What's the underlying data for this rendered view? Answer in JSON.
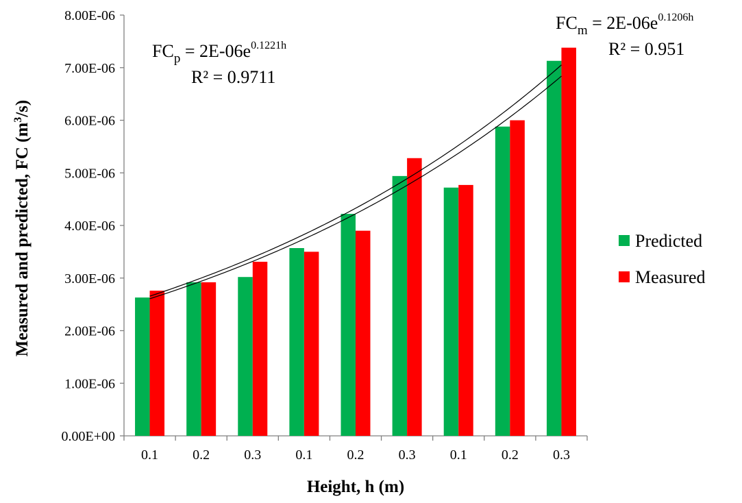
{
  "chart_data": {
    "type": "bar",
    "title": "",
    "xlabel": "Height, h (m)",
    "ylabel_main": "Measured and predicted, FC (m",
    "ylabel_sup": "3",
    "ylabel_end": "/s)",
    "categories": [
      "0.1",
      "0.2",
      "0.3",
      "0.1",
      "0.2",
      "0.3",
      "0.1",
      "0.2",
      "0.3"
    ],
    "series": [
      {
        "name": "Predicted",
        "color": "#00b050",
        "values": [
          2.63e-06,
          2.92e-06,
          3.02e-06,
          3.57e-06,
          4.22e-06,
          4.94e-06,
          4.72e-06,
          5.88e-06,
          7.13e-06
        ]
      },
      {
        "name": "Measured",
        "color": "#ff0000",
        "values": [
          2.76e-06,
          2.92e-06,
          3.31e-06,
          3.5e-06,
          3.9e-06,
          5.28e-06,
          4.77e-06,
          6e-06,
          7.38e-06
        ]
      }
    ],
    "ylim": [
      0,
      8e-06
    ],
    "yticks": [
      {
        "value": 0,
        "label": "0.00E+00"
      },
      {
        "value": 1e-06,
        "label": "1.00E-06"
      },
      {
        "value": 2e-06,
        "label": "2.00E-06"
      },
      {
        "value": 3e-06,
        "label": "3.00E-06"
      },
      {
        "value": 4e-06,
        "label": "4.00E-06"
      },
      {
        "value": 5e-06,
        "label": "5.00E-06"
      },
      {
        "value": 6e-06,
        "label": "6.00E-06"
      },
      {
        "value": 7e-06,
        "label": "7.00E-06"
      },
      {
        "value": 8e-06,
        "label": "8.00E-06"
      }
    ],
    "trendlines": [
      {
        "series": "Predicted",
        "type": "exponential",
        "a": 2.35e-06,
        "b": 0.1221,
        "eq_lhs": "FC",
        "eq_sub": "p",
        "eq_rhs": " = 2E-06e",
        "eq_exp": "0.1221h",
        "r2": "R² = 0.9711"
      },
      {
        "series": "Measured",
        "type": "exponential",
        "a": 2.31e-06,
        "b": 0.1206,
        "eq_lhs": "FC",
        "eq_sub": "m",
        "eq_rhs": " = 2E-06e",
        "eq_exp": "0.1206h",
        "r2": "R² = 0.951"
      }
    ],
    "grid": false,
    "legend_position": "right"
  }
}
